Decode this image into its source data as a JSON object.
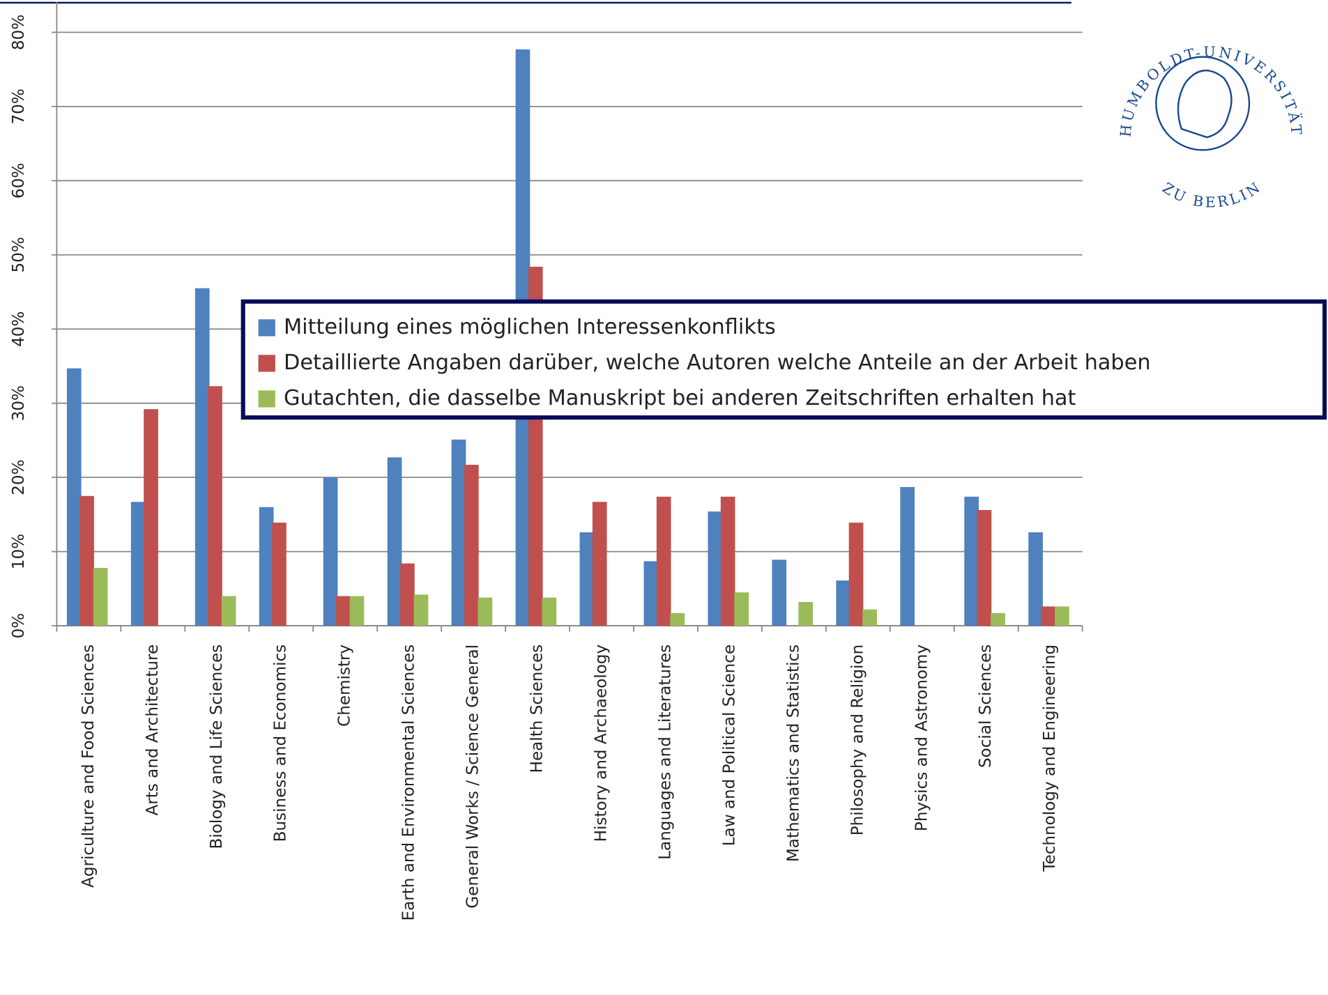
{
  "chart_data": {
    "type": "bar",
    "categories": [
      "Agriculture and Food Sciences",
      "Arts and Architecture",
      "Biology and Life Sciences",
      "Business and Economics",
      "Chemistry",
      "Earth and Environmental Sciences",
      "General Works / Science General",
      "Health Sciences",
      "History and Archaeology",
      "Languages and Literatures",
      "Law and Political Science",
      "Mathematics and Statistics",
      "Philosophy and Religion",
      "Physics and Astronomy",
      "Social Sciences",
      "Technology and Engineering"
    ],
    "series": [
      {
        "name": "Mitteilung eines möglichen Interessenkonflikts",
        "color": "#4f81bd",
        "values": [
          34.7,
          16.7,
          45.5,
          16.0,
          20.0,
          22.7,
          25.1,
          77.7,
          12.6,
          8.7,
          15.4,
          8.9,
          6.1,
          18.7,
          17.4,
          12.6
        ]
      },
      {
        "name": "Detaillierte Angaben darüber, welche Autoren welche Anteile an der Arbeit haben",
        "color": "#c0504d",
        "values": [
          17.5,
          29.2,
          32.3,
          13.9,
          4.0,
          8.4,
          21.7,
          48.4,
          16.7,
          17.4,
          17.4,
          0,
          13.9,
          0,
          15.6,
          2.6
        ]
      },
      {
        "name": "Gutachten, die dasselbe Manuskript bei anderen Zeitschriften erhalten hat",
        "color": "#9bbb59",
        "values": [
          7.8,
          0,
          4.0,
          0,
          4.0,
          4.2,
          3.8,
          3.8,
          0,
          1.7,
          4.5,
          3.2,
          2.2,
          0,
          1.7,
          2.6
        ]
      }
    ],
    "ylim": [
      0,
      80
    ],
    "yticks": [
      {
        "value": 0,
        "label": "0%"
      },
      {
        "value": 10,
        "label": "10%"
      },
      {
        "value": 20,
        "label": "20%"
      },
      {
        "value": 30,
        "label": "30%"
      },
      {
        "value": 40,
        "label": "40%"
      },
      {
        "value": 50,
        "label": "50%"
      },
      {
        "value": 60,
        "label": "60%"
      },
      {
        "value": 70,
        "label": "70%"
      },
      {
        "value": 80,
        "label": "80%"
      }
    ],
    "grid": true,
    "legend": "upper right"
  },
  "logo": {
    "top": "HUMBOLDT-UNIVERSITÄT",
    "bottom": "ZU BERLIN"
  }
}
